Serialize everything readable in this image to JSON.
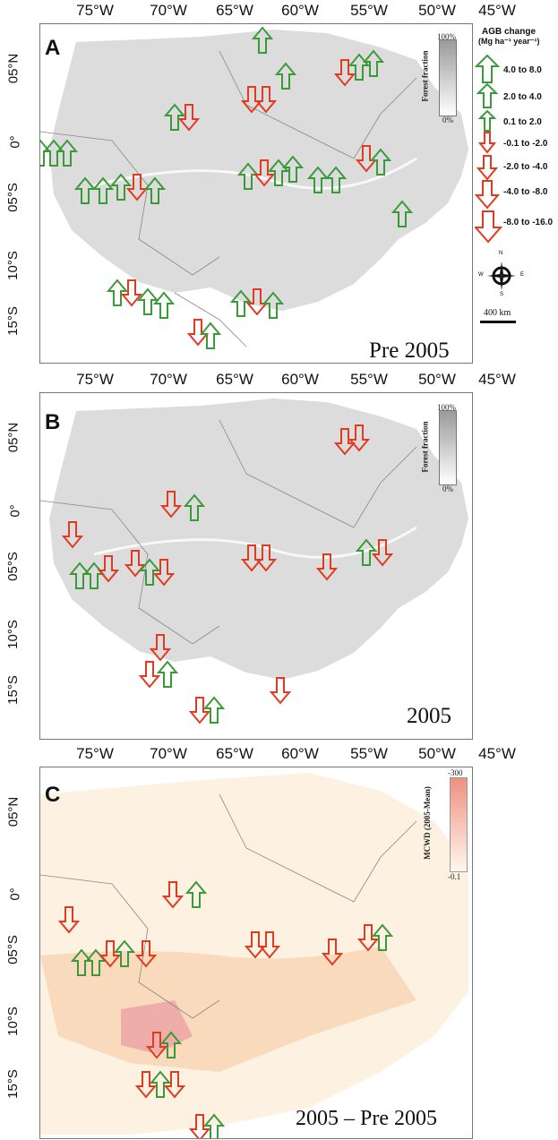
{
  "x_axis_labels": [
    "75°W",
    "70°W",
    "65°W",
    "60°W",
    "55°W",
    "50°W",
    "45°W"
  ],
  "y_axis_labels": [
    "05°N",
    "0°",
    "05°S",
    "10°S",
    "15°S"
  ],
  "panels": [
    {
      "letter": "A",
      "caption": "Pre 2005"
    },
    {
      "letter": "B",
      "caption": "2005"
    },
    {
      "letter": "C",
      "caption": "2005 – Pre 2005"
    }
  ],
  "legend": {
    "title_line1": "AGB change",
    "title_line2": "(Mg ha⁻¹ year⁻¹)",
    "items": [
      {
        "label": "4.0 to 8.0",
        "direction": "up",
        "color": "#3a9a3a"
      },
      {
        "label": "2.0 to 4.0",
        "direction": "up",
        "color": "#3a9a3a"
      },
      {
        "label": "0.1 to 2.0",
        "direction": "up",
        "color": "#3a9a3a"
      },
      {
        "label": "-0.1 to -2.0",
        "direction": "down",
        "color": "#e03a20"
      },
      {
        "label": "-2.0 to -4.0",
        "direction": "down",
        "color": "#e03a20"
      },
      {
        "label": "-4.0 to -8.0",
        "direction": "down",
        "color": "#e03a20"
      },
      {
        "label": "-8.0 to -16.0",
        "direction": "down",
        "color": "#e03a20"
      }
    ],
    "compass": {
      "n": "N",
      "s": "S",
      "e": "E",
      "w": "W"
    },
    "scale_label": "400 km"
  },
  "forest_fraction": {
    "title": "Forest fraction",
    "max": "100%",
    "min": "0%"
  },
  "mcwd": {
    "title": "MCWD (2005-Mean)",
    "max": "-300",
    "min": "-0.1"
  },
  "colors": {
    "gain": "#3a9a3a",
    "loss": "#e03a20",
    "forest": "#d9d9d9",
    "mcwd_low": "#fbe6cf",
    "mcwd_high": "#f2a89a"
  }
}
